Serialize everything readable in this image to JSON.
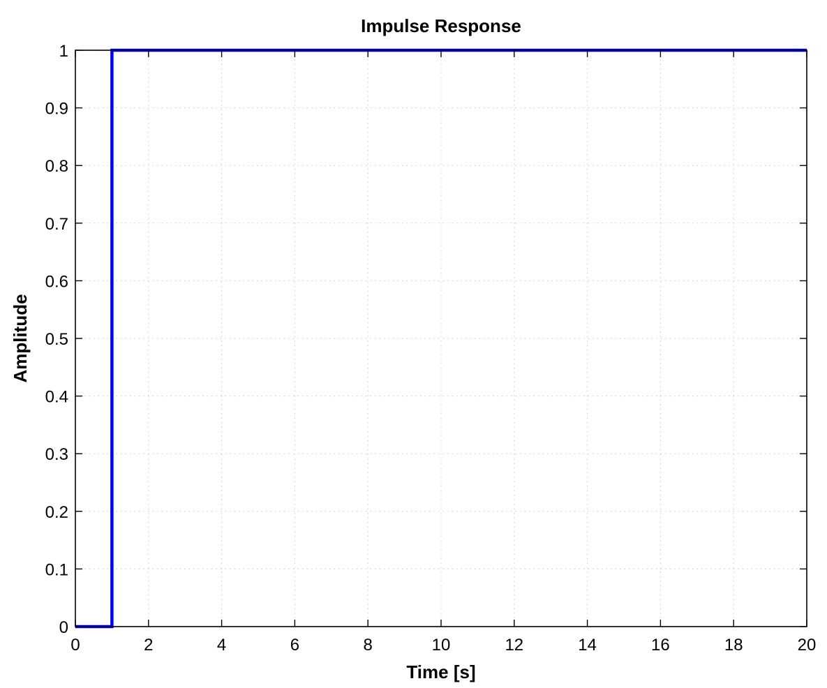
{
  "chart_data": {
    "type": "line",
    "title": "Impulse Response",
    "xlabel": "Time [s]",
    "ylabel": "Amplitude",
    "xlim": [
      0,
      20
    ],
    "ylim": [
      0,
      1
    ],
    "xticks": [
      0,
      2,
      4,
      6,
      8,
      10,
      12,
      14,
      16,
      18,
      20
    ],
    "yticks": [
      0,
      0.1,
      0.2,
      0.3,
      0.4,
      0.5,
      0.6,
      0.7,
      0.8,
      0.9,
      1
    ],
    "xtick_labels": [
      "0",
      "2",
      "4",
      "6",
      "8",
      "10",
      "12",
      "14",
      "16",
      "18",
      "20"
    ],
    "ytick_labels": [
      "0",
      "0.1",
      "0.2",
      "0.3",
      "0.4",
      "0.5",
      "0.6",
      "0.7",
      "0.8",
      "0.9",
      "1"
    ],
    "grid": true,
    "series": [
      {
        "color": "#0000ee",
        "x": [
          0,
          1,
          1,
          20
        ],
        "y": [
          0,
          0,
          1,
          1
        ]
      }
    ]
  }
}
